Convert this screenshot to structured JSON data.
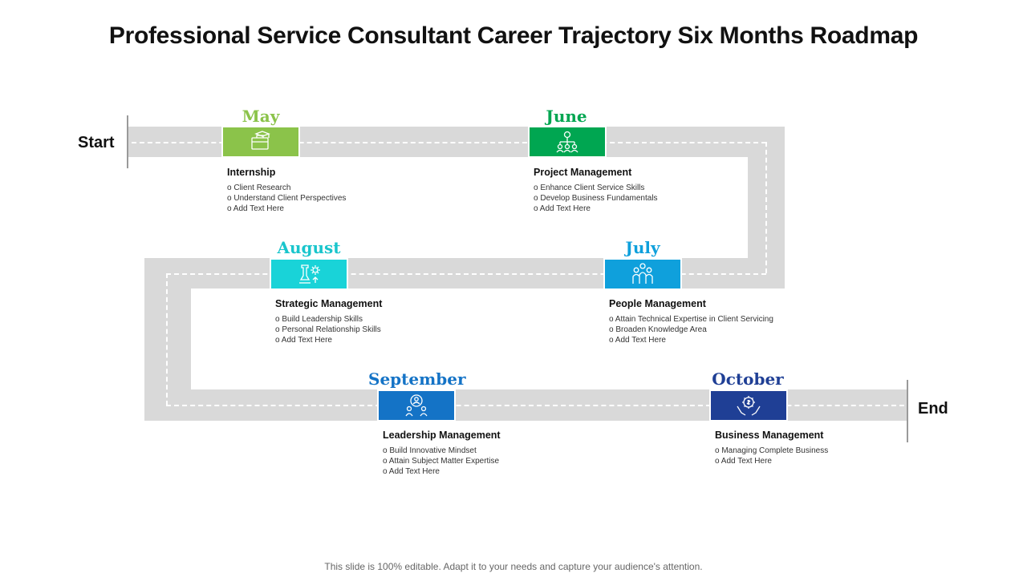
{
  "title": "Professional Service Consultant Career Trajectory Six Months Roadmap",
  "start_label": "Start",
  "end_label": "End",
  "footer": "This slide is 100% editable. Adapt it to your needs and capture your audience's attention.",
  "colors": {
    "road": "#d9d9d9"
  },
  "milestones": [
    {
      "month": "May",
      "color": "#8bc34a",
      "icon": "briefcase-graduation-icon",
      "heading": "Internship",
      "bullets": [
        "Client Research",
        "Understand Client  Perspectives",
        "Add Text Here"
      ]
    },
    {
      "month": "June",
      "color": "#00a651",
      "icon": "team-hierarchy-icon",
      "heading": "Project Management",
      "bullets": [
        "Enhance Client  Service Skills",
        "Develop Business Fundamentals",
        "Add Text Here"
      ]
    },
    {
      "month": "July",
      "color": "#0fa0dc",
      "icon": "people-group-icon",
      "heading": "People Management",
      "bullets": [
        "Attain Technical Expertise in Client Servicing",
        "Broaden Knowledge Area",
        "Add Text Here"
      ]
    },
    {
      "month": "August",
      "color": "#19d3d8",
      "icon": "chess-gear-icon",
      "heading": "Strategic Management",
      "bullets": [
        "Build Leadership Skills",
        "Personal Relationship Skills",
        "Add Text Here"
      ]
    },
    {
      "month": "September",
      "color": "#1473c6",
      "icon": "leader-team-icon",
      "heading": "Leadership Management",
      "bullets": [
        "Build Innovative Mindset",
        "Attain Subject Matter Expertise",
        "Add Text Here"
      ]
    },
    {
      "month": "October",
      "color": "#1f3f95",
      "icon": "hands-gear-dollar-icon",
      "heading": "Business  Management",
      "bullets": [
        "Managing Complete Business",
        "Add Text Here"
      ]
    }
  ]
}
